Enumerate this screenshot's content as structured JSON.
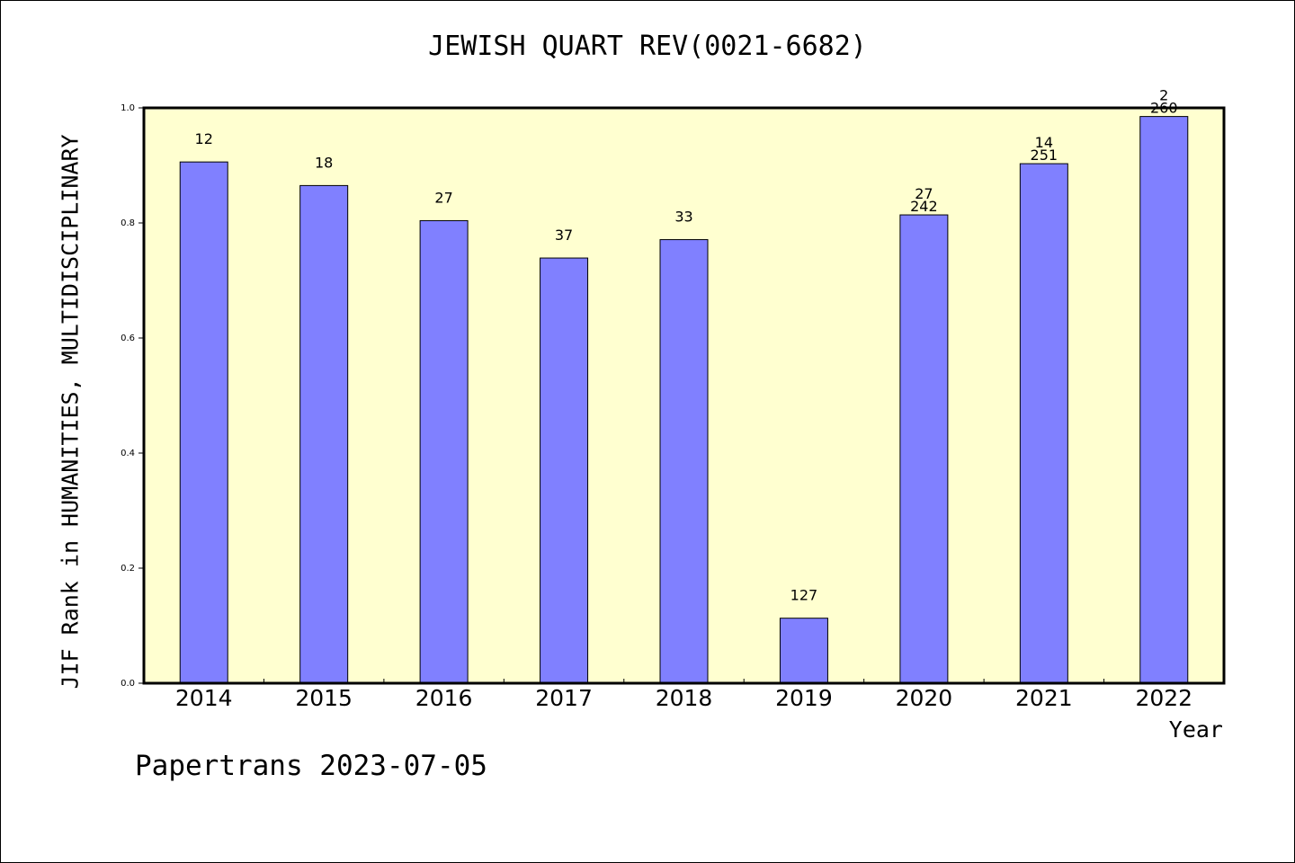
{
  "chart_data": {
    "type": "bar",
    "title": "JEWISH QUART REV(0021-6682)",
    "xlabel": "Year",
    "ylabel": "JIF Rank in HUMANITIES, MULTIDISCIPLINARY",
    "categories": [
      "2014",
      "2015",
      "2016",
      "2017",
      "2018",
      "2019",
      "2020",
      "2021",
      "2022"
    ],
    "values": [
      0.906,
      0.865,
      0.804,
      0.739,
      0.771,
      0.113,
      0.814,
      0.903,
      0.985
    ],
    "rank_labels": [
      "12",
      "18",
      "27",
      "37",
      "33",
      "127",
      "27",
      "14",
      "2"
    ],
    "total_labels": [
      "",
      "",
      "",
      "",
      "",
      "",
      "242",
      "251",
      "260"
    ],
    "ylim": [
      0,
      1.0
    ],
    "yticks": [
      "0.0",
      "0.2",
      "0.4",
      "0.6",
      "0.8",
      "1.0"
    ],
    "grid": false,
    "colors": {
      "bar": "#8080ff",
      "plot_background": "#ffffd0",
      "border": "#000000"
    }
  },
  "footer": "Papertrans 2023-07-05"
}
